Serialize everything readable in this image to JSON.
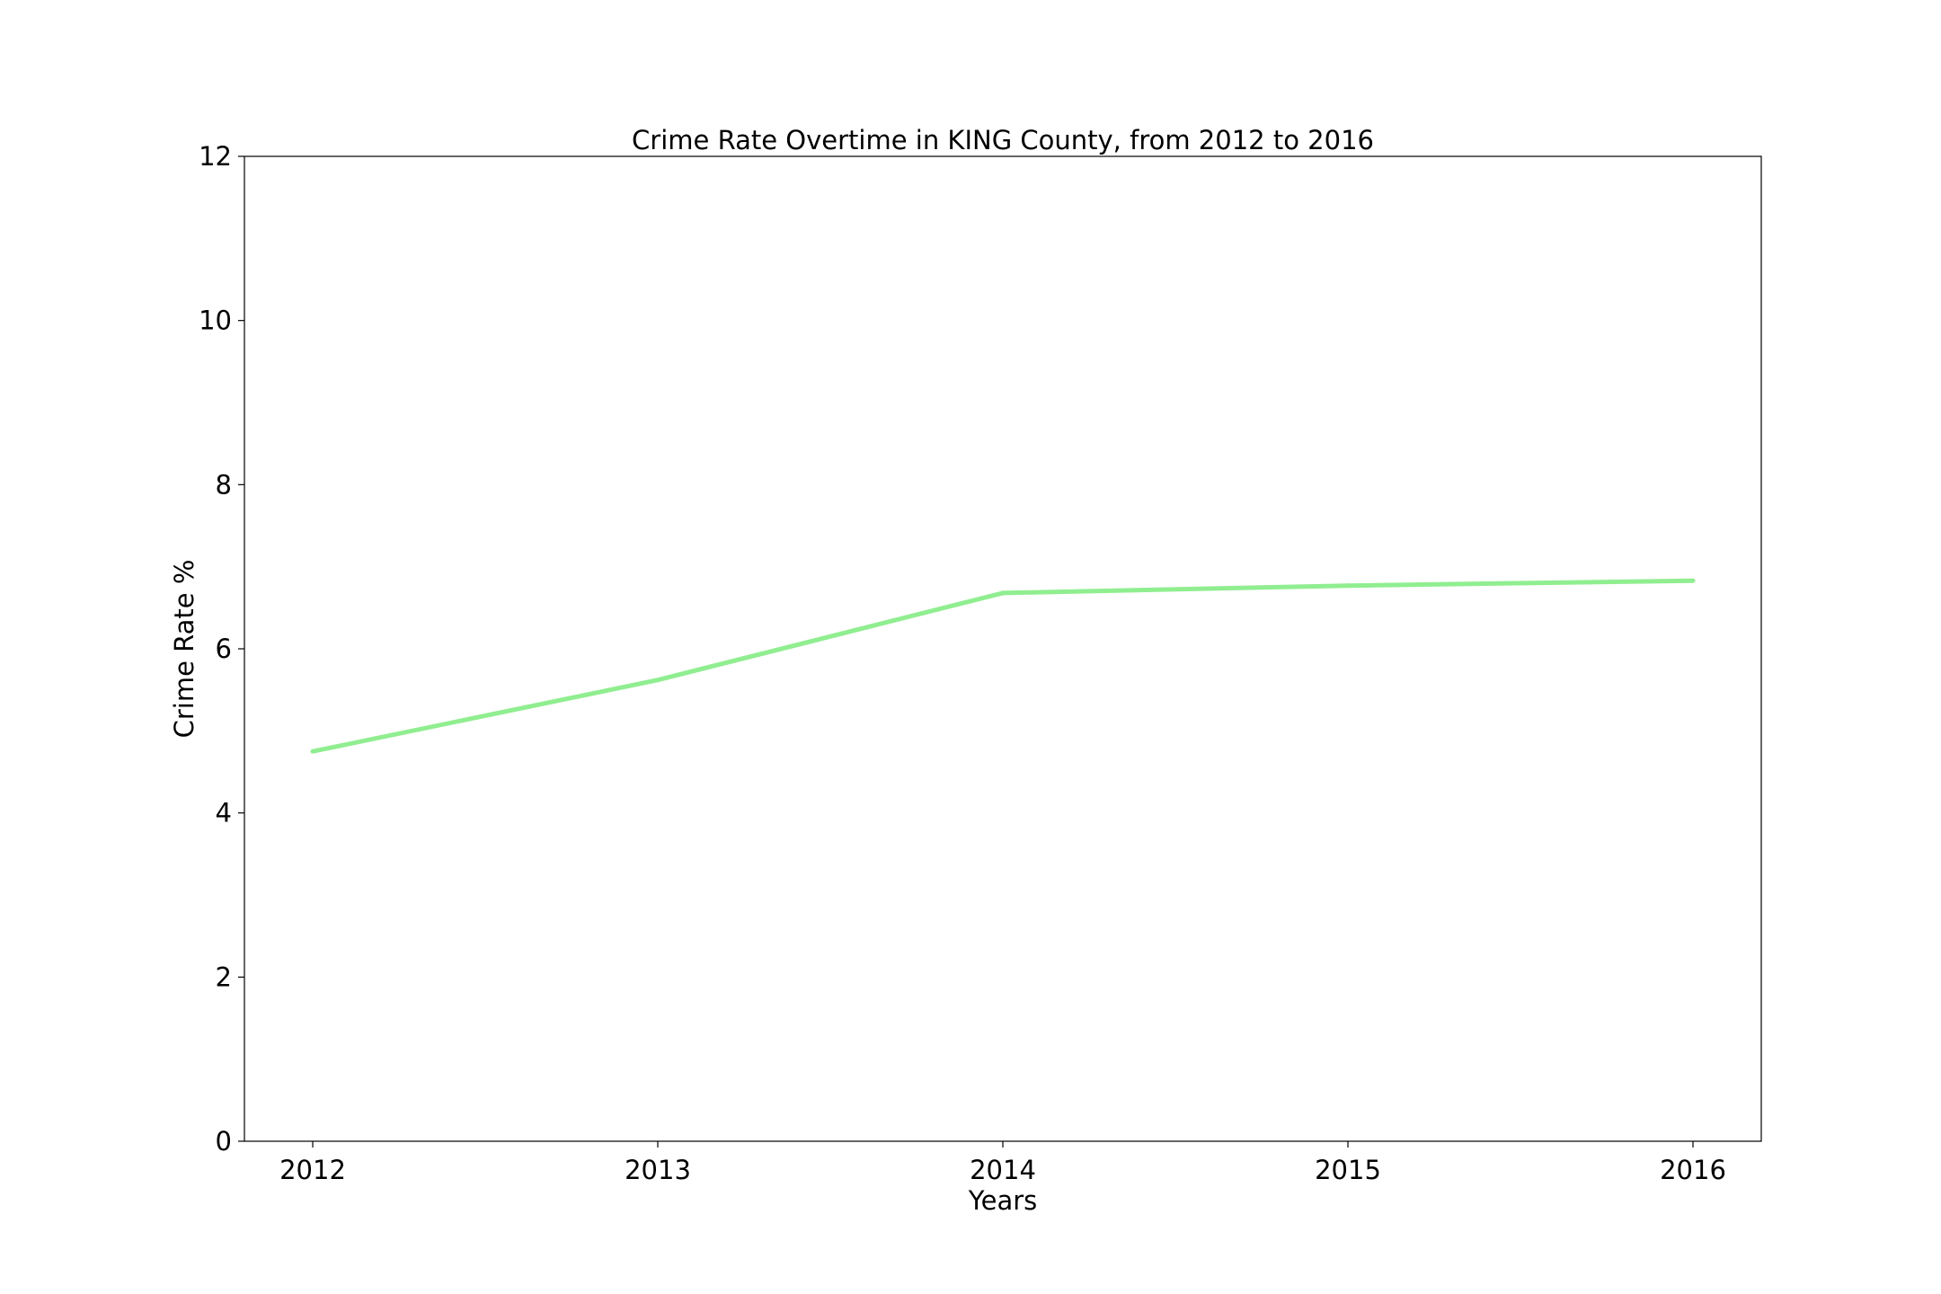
{
  "chart_data": {
    "type": "line",
    "title": "Crime Rate Overtime in KING County, from 2012 to 2016",
    "xlabel": "Years",
    "ylabel": "Crime Rate %",
    "x": [
      "2012",
      "2013",
      "2014",
      "2015",
      "2016"
    ],
    "series": [
      {
        "values": [
          4.75,
          5.62,
          6.68,
          6.77,
          6.83
        ],
        "color": "#90ee90"
      }
    ],
    "ylim": [
      0,
      12
    ],
    "yticks": [
      0,
      2,
      4,
      6,
      8,
      10,
      12
    ],
    "grid": false,
    "legend": "none"
  }
}
